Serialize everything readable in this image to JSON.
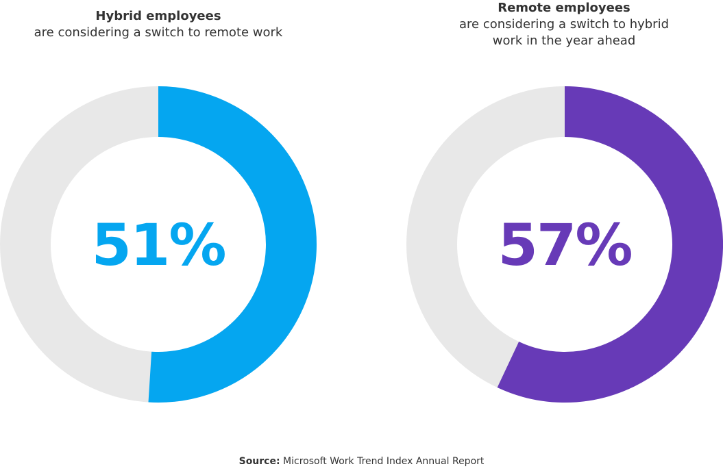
{
  "chart_data": [
    {
      "type": "donut",
      "title": "Hybrid employees",
      "subtitle": "are considering a switch to remote work",
      "values": [
        51
      ],
      "value_labels": [
        "51%"
      ],
      "color": "#05a6f0",
      "track_color": "#e8e8e8"
    },
    {
      "type": "donut",
      "title": "Remote employees",
      "subtitle": "are considering a switch to hybrid work in the year ahead",
      "values": [
        57
      ],
      "value_labels": [
        "57%"
      ],
      "color": "#673ab7",
      "track_color": "#e8e8e8"
    }
  ],
  "source": {
    "label": "Source:",
    "text": "Microsoft Work Trend Index Annual Report"
  }
}
